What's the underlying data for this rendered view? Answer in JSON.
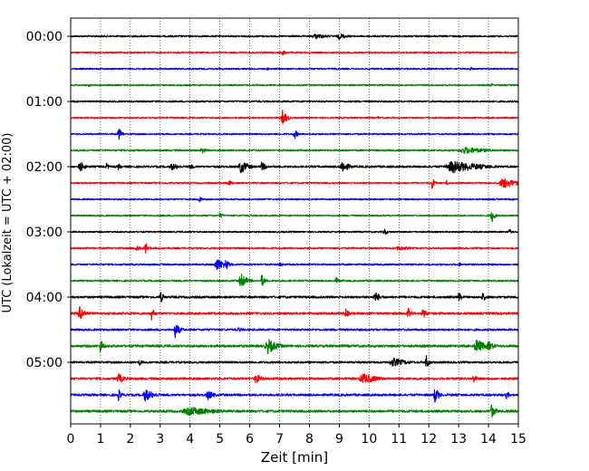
{
  "chart_data": {
    "type": "line",
    "title": "",
    "xlabel": "Zeit  [min]",
    "ylabel": "UTC (Lokalzeit = UTC + 02:00)",
    "xlim": [
      0,
      15
    ],
    "x_ticks": [
      "0",
      "1",
      "2",
      "3",
      "4",
      "5",
      "6",
      "7",
      "8",
      "9",
      "10",
      "11",
      "12",
      "13",
      "14",
      "15"
    ],
    "y_tick_labels": [
      "00:00",
      "01:00",
      "02:00",
      "03:00",
      "04:00",
      "05:00"
    ],
    "grid": "vertical dotted at each minute",
    "trace_colors": [
      "#000000",
      "#ff0000",
      "#0000ff",
      "#008000"
    ],
    "series": [
      {
        "start": "00:00",
        "color": "#000000",
        "noise": 0.9,
        "events": [
          {
            "t": 8.2,
            "amp": 3,
            "w": 0.5
          },
          {
            "t": 9.0,
            "amp": 3.5,
            "w": 0.3
          }
        ]
      },
      {
        "start": "00:15",
        "color": "#ff0000",
        "noise": 0.8,
        "events": [
          {
            "t": 7.1,
            "amp": 3,
            "w": 0.15
          }
        ]
      },
      {
        "start": "00:30",
        "color": "#0000ff",
        "noise": 0.8,
        "events": [
          {
            "t": 6.6,
            "amp": 2,
            "w": 0.1
          },
          {
            "t": 13.4,
            "amp": 2,
            "w": 0.1
          }
        ]
      },
      {
        "start": "00:45",
        "color": "#008000",
        "noise": 0.8,
        "events": [
          {
            "t": 0.6,
            "amp": 2,
            "w": 0.1
          },
          {
            "t": 14.1,
            "amp": 2,
            "w": 0.1
          }
        ]
      },
      {
        "start": "01:00",
        "color": "#000000",
        "noise": 0.9,
        "events": [
          {
            "t": 4.2,
            "amp": 2,
            "w": 0.1
          }
        ]
      },
      {
        "start": "01:15",
        "color": "#ff0000",
        "noise": 0.8,
        "events": [
          {
            "t": 7.1,
            "amp": 9,
            "w": 0.15
          },
          {
            "t": 10.3,
            "amp": 2,
            "w": 0.08
          }
        ]
      },
      {
        "start": "01:30",
        "color": "#0000ff",
        "noise": 0.8,
        "events": [
          {
            "t": 1.6,
            "amp": 8,
            "w": 0.1
          },
          {
            "t": 7.5,
            "amp": 6,
            "w": 0.1
          }
        ]
      },
      {
        "start": "01:45",
        "color": "#008000",
        "noise": 0.9,
        "events": [
          {
            "t": 4.4,
            "amp": 4,
            "w": 0.15
          },
          {
            "t": 13.2,
            "amp": 4,
            "w": 0.8
          }
        ]
      },
      {
        "start": "02:00",
        "color": "#000000",
        "noise": 1.1,
        "events": [
          {
            "t": 0.3,
            "amp": 7,
            "w": 0.15
          },
          {
            "t": 1.2,
            "amp": 4,
            "w": 0.1
          },
          {
            "t": 1.6,
            "amp": 4,
            "w": 0.1
          },
          {
            "t": 3.4,
            "amp": 4,
            "w": 0.3
          },
          {
            "t": 4.0,
            "amp": 3,
            "w": 0.2
          },
          {
            "t": 5.7,
            "amp": 8,
            "w": 0.25
          },
          {
            "t": 6.4,
            "amp": 5,
            "w": 0.2
          },
          {
            "t": 9.1,
            "amp": 8,
            "w": 0.2
          },
          {
            "t": 12.8,
            "amp": 7,
            "w": 0.9
          }
        ]
      },
      {
        "start": "02:15",
        "color": "#ff0000",
        "noise": 0.8,
        "events": [
          {
            "t": 5.3,
            "amp": 3,
            "w": 0.2
          },
          {
            "t": 12.1,
            "amp": 7,
            "w": 0.1
          },
          {
            "t": 12.6,
            "amp": 3,
            "w": 0.1
          },
          {
            "t": 14.5,
            "amp": 6,
            "w": 0.5
          }
        ]
      },
      {
        "start": "02:30",
        "color": "#0000ff",
        "noise": 0.8,
        "events": [
          {
            "t": 4.3,
            "amp": 4,
            "w": 0.1
          }
        ]
      },
      {
        "start": "02:45",
        "color": "#008000",
        "noise": 0.8,
        "events": [
          {
            "t": 5.0,
            "amp": 4,
            "w": 0.1
          },
          {
            "t": 14.1,
            "amp": 9,
            "w": 0.1
          }
        ]
      },
      {
        "start": "03:00",
        "color": "#000000",
        "noise": 0.8,
        "events": [
          {
            "t": 10.5,
            "amp": 5,
            "w": 0.1
          },
          {
            "t": 14.7,
            "amp": 4,
            "w": 0.1
          }
        ]
      },
      {
        "start": "03:15",
        "color": "#ff0000",
        "noise": 0.9,
        "events": [
          {
            "t": 2.2,
            "amp": 4,
            "w": 0.2
          },
          {
            "t": 2.5,
            "amp": 8,
            "w": 0.1
          },
          {
            "t": 11.0,
            "amp": 3,
            "w": 0.4
          }
        ]
      },
      {
        "start": "03:30",
        "color": "#0000ff",
        "noise": 0.9,
        "events": [
          {
            "t": 4.9,
            "amp": 7,
            "w": 0.3
          },
          {
            "t": 5.2,
            "amp": 8,
            "w": 0.1
          },
          {
            "t": 7.0,
            "amp": 3,
            "w": 0.15
          },
          {
            "t": 13.0,
            "amp": 3,
            "w": 0.1
          }
        ]
      },
      {
        "start": "03:45",
        "color": "#008000",
        "noise": 0.9,
        "events": [
          {
            "t": 5.7,
            "amp": 9,
            "w": 0.2
          },
          {
            "t": 6.4,
            "amp": 8,
            "w": 0.1
          },
          {
            "t": 8.9,
            "amp": 4,
            "w": 0.1
          }
        ]
      },
      {
        "start": "04:00",
        "color": "#000000",
        "noise": 1.2,
        "events": [
          {
            "t": 3.0,
            "amp": 8,
            "w": 0.1
          },
          {
            "t": 10.2,
            "amp": 6,
            "w": 0.2
          },
          {
            "t": 13.0,
            "amp": 6,
            "w": 0.1
          },
          {
            "t": 13.8,
            "amp": 5,
            "w": 0.15
          }
        ]
      },
      {
        "start": "04:15",
        "color": "#ff0000",
        "noise": 1.2,
        "events": [
          {
            "t": 0.3,
            "amp": 8,
            "w": 0.2
          },
          {
            "t": 2.7,
            "amp": 9,
            "w": 0.1
          },
          {
            "t": 9.2,
            "amp": 7,
            "w": 0.1
          },
          {
            "t": 11.3,
            "amp": 9,
            "w": 0.1
          },
          {
            "t": 11.8,
            "amp": 8,
            "w": 0.1
          }
        ]
      },
      {
        "start": "04:30",
        "color": "#0000ff",
        "noise": 1.1,
        "events": [
          {
            "t": 3.5,
            "amp": 9,
            "w": 0.15
          },
          {
            "t": 5.6,
            "amp": 3,
            "w": 0.2
          }
        ]
      },
      {
        "start": "04:45",
        "color": "#008000",
        "noise": 1.3,
        "events": [
          {
            "t": 1.0,
            "amp": 9,
            "w": 0.1
          },
          {
            "t": 6.6,
            "amp": 9,
            "w": 0.3
          },
          {
            "t": 13.6,
            "amp": 8,
            "w": 0.3
          },
          {
            "t": 14.0,
            "amp": 6,
            "w": 0.2
          }
        ]
      },
      {
        "start": "05:00",
        "color": "#000000",
        "noise": 1.1,
        "events": [
          {
            "t": 2.3,
            "amp": 4,
            "w": 0.1
          },
          {
            "t": 10.8,
            "amp": 5,
            "w": 0.5
          },
          {
            "t": 11.9,
            "amp": 9,
            "w": 0.1
          }
        ]
      },
      {
        "start": "05:15",
        "color": "#ff0000",
        "noise": 1.2,
        "events": [
          {
            "t": 1.6,
            "amp": 6,
            "w": 0.2
          },
          {
            "t": 6.2,
            "amp": 6,
            "w": 0.2
          },
          {
            "t": 9.8,
            "amp": 6,
            "w": 0.5
          },
          {
            "t": 13.5,
            "amp": 6,
            "w": 0.1
          }
        ]
      },
      {
        "start": "05:30",
        "color": "#0000ff",
        "noise": 1.2,
        "events": [
          {
            "t": 1.6,
            "amp": 7,
            "w": 0.1
          },
          {
            "t": 2.5,
            "amp": 7,
            "w": 0.3
          },
          {
            "t": 4.6,
            "amp": 6,
            "w": 0.2
          },
          {
            "t": 12.2,
            "amp": 9,
            "w": 0.15
          },
          {
            "t": 14.6,
            "amp": 5,
            "w": 0.1
          }
        ]
      },
      {
        "start": "05:45",
        "color": "#008000",
        "noise": 1.3,
        "events": [
          {
            "t": 4.0,
            "amp": 5,
            "w": 1.0
          },
          {
            "t": 14.1,
            "amp": 8,
            "w": 0.15
          }
        ]
      }
    ]
  }
}
